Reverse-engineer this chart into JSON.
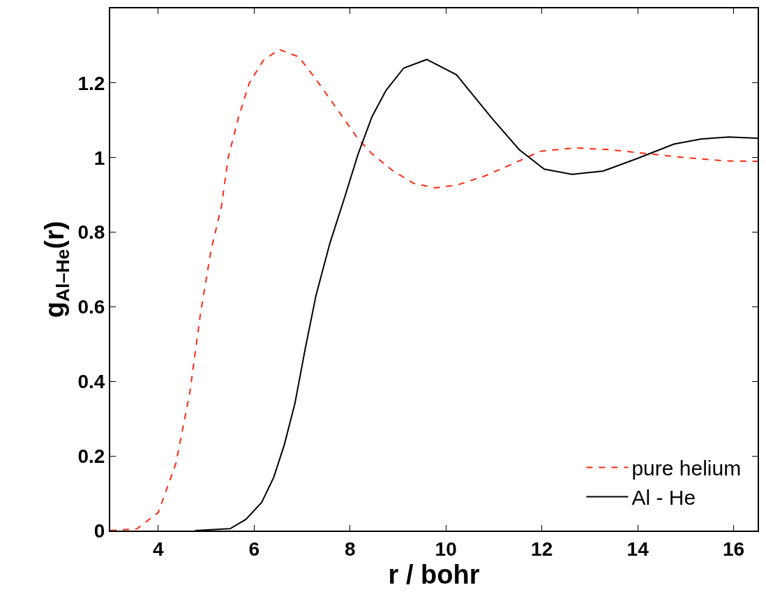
{
  "chart_data": {
    "type": "line",
    "xlabel": "r / bohr",
    "ylabel": "g$_{Al–He}$(r)",
    "xlim": [
      3,
      16.5
    ],
    "xticks": [
      4,
      6,
      8,
      10,
      12,
      14,
      16
    ],
    "ylim": [
      0,
      1.4
    ],
    "yticks": [
      0,
      0.2,
      0.4,
      0.6,
      0.8,
      1,
      1.2
    ],
    "grid": false,
    "legend": "bottom right",
    "marker": "none",
    "series": [
      {
        "name": "pure helium",
        "color": "#ff2a12",
        "line_style": "dashed",
        "x": [
          3,
          3.56,
          4.0,
          4.37,
          4.66,
          4.88,
          5.1,
          5.32,
          5.46,
          5.68,
          5.9,
          6.19,
          6.52,
          6.93,
          7.29,
          7.73,
          8.17,
          8.46,
          8.9,
          9.34,
          9.78,
          10.22,
          10.8,
          11.39,
          11.97,
          12.7,
          13.43,
          14.24,
          14.97,
          15.85,
          16.5
        ],
        "values": [
          0,
          0.005,
          0.048,
          0.18,
          0.37,
          0.58,
          0.75,
          0.87,
          1.0,
          1.11,
          1.2,
          1.26,
          1.29,
          1.27,
          1.21,
          1.13,
          1.05,
          1.01,
          0.964,
          0.93,
          0.919,
          0.926,
          0.95,
          0.983,
          1.017,
          1.026,
          1.021,
          1.01,
          1.0,
          0.991,
          0.99
        ]
      },
      {
        "name": "Al - He",
        "color": "#000000",
        "line_style": "solid",
        "x": [
          4.77,
          5.5,
          5.83,
          6.16,
          6.41,
          6.63,
          6.85,
          7.07,
          7.29,
          7.58,
          7.88,
          8.17,
          8.46,
          8.75,
          9.12,
          9.6,
          10.22,
          10.95,
          11.53,
          12.05,
          12.63,
          13.28,
          14.0,
          14.75,
          15.33,
          15.9,
          16.5
        ],
        "values": [
          0,
          0.005,
          0.03,
          0.076,
          0.143,
          0.23,
          0.34,
          0.49,
          0.63,
          0.77,
          0.89,
          1.01,
          1.11,
          1.18,
          1.24,
          1.263,
          1.222,
          1.107,
          1.021,
          0.969,
          0.955,
          0.964,
          0.998,
          1.036,
          1.05,
          1.055,
          1.052
        ]
      }
    ]
  }
}
